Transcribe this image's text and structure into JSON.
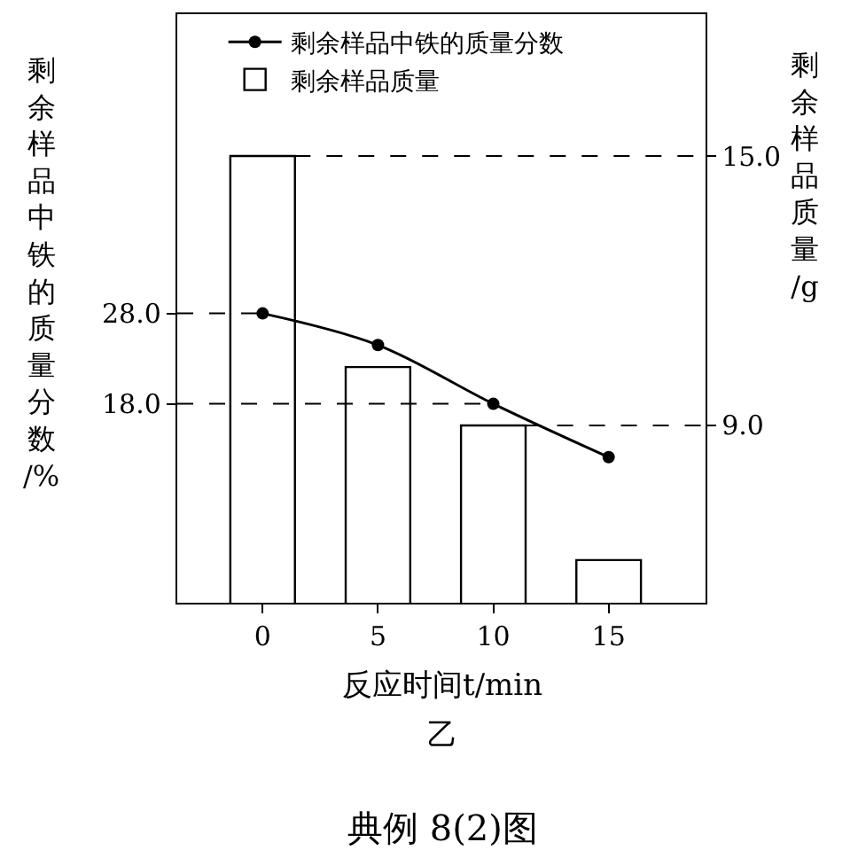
{
  "chart_data": {
    "type": "bar",
    "x": [
      0,
      5,
      10,
      15
    ],
    "xlim": [
      -3.7,
      19.2
    ],
    "xticks": [
      0,
      5,
      10,
      15
    ],
    "ylim": [
      -4.0,
      61.1
    ],
    "yticks": [
      {
        "value": 18,
        "label": "18.0"
      },
      {
        "value": 28,
        "label": "28.0"
      }
    ],
    "y2lim": [
      5.05,
      18.16
    ],
    "y2ticks": [
      {
        "value": 9,
        "label": "9.0"
      },
      {
        "value": 15,
        "label": "15.0"
      }
    ],
    "xlabel": "反应时间t/min",
    "ylabel": "剩余样品中铁的质量分数/%",
    "y2label": "剩余样品质量/g",
    "series": [
      {
        "name": "剩余样品中铁的质量分数",
        "type": "line",
        "color": "#000000",
        "values": [
          28.0,
          24.5,
          18.0,
          12.1
        ],
        "marker": "circle"
      },
      {
        "name": "剩余样品质量",
        "axis": "y2",
        "color": "#ffffff",
        "values": [
          15.0,
          10.3,
          9.0,
          6.0
        ]
      }
    ],
    "ref_lines": [
      {
        "axis": "y",
        "value": 28,
        "line_style": "dashed",
        "color": "#000000"
      },
      {
        "axis": "y",
        "value": 18,
        "line_style": "dashed",
        "color": "#000000"
      },
      {
        "axis": "y2",
        "value": 15,
        "line_style": "dashed",
        "color": "#000000"
      },
      {
        "axis": "y2",
        "value": 9,
        "line_style": "dashed",
        "color": "#000000"
      }
    ],
    "legend": "top",
    "annotations": [
      "乙",
      "典例 8(2)图"
    ]
  }
}
